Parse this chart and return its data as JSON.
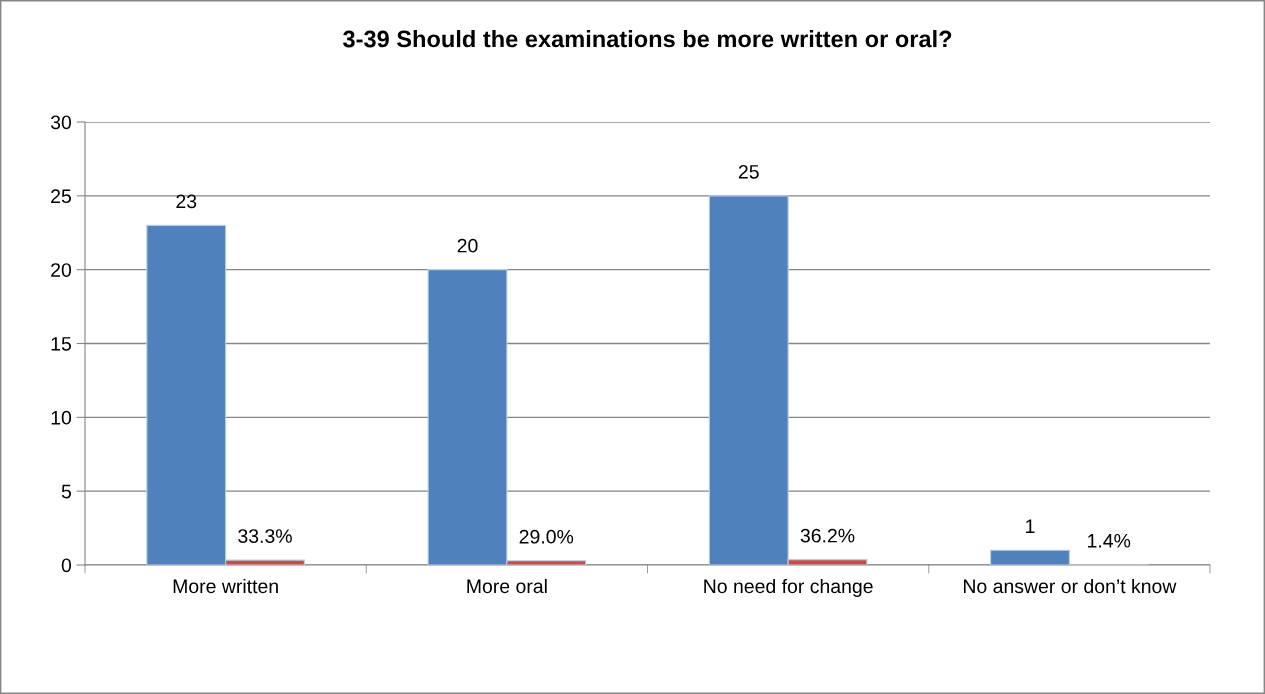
{
  "chart_data": {
    "type": "bar",
    "title": "3-39 Should the examinations be more written or oral?",
    "categories": [
      "More written",
      "More oral",
      "No need for change",
      "No answer or don’t know"
    ],
    "series": [
      {
        "color": "#4f81bd",
        "values": [
          23,
          20,
          25,
          1
        ],
        "value_labels": [
          "23",
          "20",
          "25",
          "1"
        ]
      },
      {
        "color": "#c0504d",
        "values": [
          0.333,
          0.29,
          0.362,
          0.014
        ],
        "value_labels": [
          "33.3%",
          "29.0%",
          "36.2%",
          "1.4%"
        ]
      }
    ],
    "ylim": [
      0,
      30
    ],
    "yticks": [
      0,
      5,
      10,
      15,
      20,
      25,
      30
    ],
    "grid": "y",
    "legend": false
  }
}
